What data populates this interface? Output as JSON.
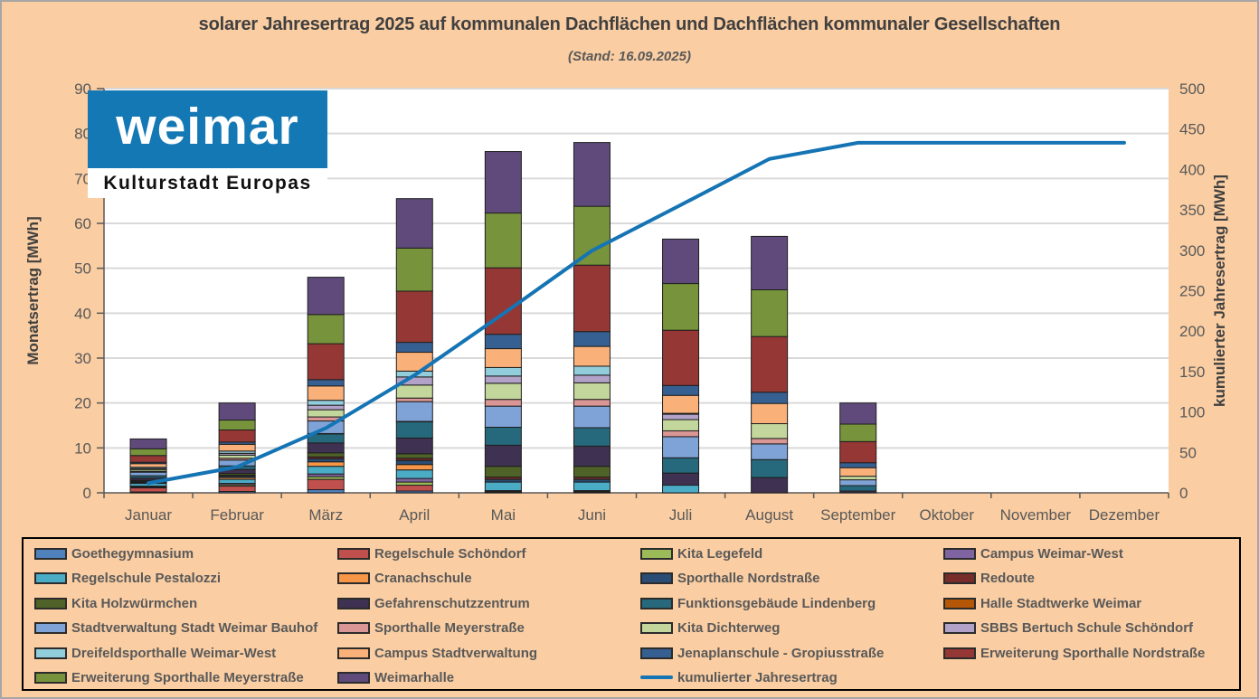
{
  "chart": {
    "title": "solarer Jahresertrag 2025  auf kommunalen Dachflächen und Dachflächen kommunaler Gesellschaften",
    "subtitle": "(Stand: 16.09.2025)"
  },
  "logo": {
    "line1": "weimar",
    "line2": "Kulturstadt Europas"
  },
  "colors": {
    "background": "#FACDA2",
    "plot_background": "#FFFFFF",
    "gridline": "#D9D9D9",
    "axis": "#595959",
    "axis_text": "#595959",
    "title_text": "#404040",
    "bar_border": "#1F1F1F",
    "line": "#1574B4",
    "logo_blue": "#1478B4",
    "legend_border": "#000000"
  },
  "chart_data": {
    "type": "bar",
    "subtype": "stacked-bars-with-cumulative-line",
    "title": "solarer Jahresertrag 2025  auf kommunalen Dachflächen und Dachflächen kommunaler Gesellschaften",
    "subtitle": "(Stand: 16.09.2025)",
    "xlabel": "",
    "ylabel_left": "Monatsertrag [MWh]",
    "ylabel_right": "kumulierter Jahresertrag [MWh]",
    "ylim_left": [
      0,
      90
    ],
    "ytick_step_left": 10,
    "ylim_right": [
      0,
      500
    ],
    "ytick_step_right": 50,
    "grid": "horizontal",
    "legend_position": "bottom-box",
    "categories": [
      "Januar",
      "Februar",
      "März",
      "April",
      "Mai",
      "Juni",
      "Juli",
      "August",
      "September",
      "Oktober",
      "November",
      "Dezember"
    ],
    "series": [
      {
        "name": "Goethegymnasium",
        "color": "#4F81BD",
        "values": [
          0.2,
          0.3,
          0.7,
          0.4,
          0.1,
          0.1,
          0,
          0,
          0,
          0,
          0,
          0
        ]
      },
      {
        "name": "Regelschule Schöndorf",
        "color": "#C0504D",
        "values": [
          0.9,
          1.2,
          2.3,
          1.3,
          0.1,
          0.1,
          0,
          0,
          0,
          0,
          0,
          0
        ]
      },
      {
        "name": "Kita Legefeld",
        "color": "#9BBB59",
        "values": [
          0.2,
          0.3,
          0.6,
          0.7,
          0.1,
          0.1,
          0,
          0,
          0,
          0,
          0,
          0
        ]
      },
      {
        "name": "Campus Weimar-West",
        "color": "#8064A2",
        "values": [
          0.2,
          0.3,
          0.6,
          0.8,
          0.2,
          0.2,
          0,
          0,
          0,
          0,
          0,
          0
        ]
      },
      {
        "name": "Regelschule Pestalozzi",
        "color": "#4BACC6",
        "values": [
          0.6,
          0.9,
          1.7,
          1.9,
          1.9,
          1.9,
          1.7,
          0,
          0,
          0,
          0,
          0
        ]
      },
      {
        "name": "Cranachschule",
        "color": "#F79646",
        "values": [
          0.2,
          0.4,
          1.0,
          1.2,
          0,
          0,
          0,
          0,
          0,
          0,
          0,
          0
        ]
      },
      {
        "name": "Sporthalle Nordstraße",
        "color": "#2A4D75",
        "values": [
          0.2,
          0.3,
          0.7,
          0.9,
          0.6,
          0.6,
          0,
          0,
          0,
          0,
          0,
          0
        ]
      },
      {
        "name": "Redoute",
        "color": "#772C2A",
        "values": [
          0.1,
          0.2,
          0.4,
          0.5,
          0.5,
          0.5,
          0,
          0,
          0,
          0,
          0,
          0
        ]
      },
      {
        "name": "Kita Holzwürmchen",
        "color": "#4F6228",
        "values": [
          0.2,
          0.4,
          0.9,
          1.0,
          2.4,
          2.4,
          0,
          0,
          0,
          0,
          0,
          0
        ]
      },
      {
        "name": "Gefahrenschutzzentrum",
        "color": "#3F3151",
        "values": [
          0.5,
          0.9,
          2.2,
          3.5,
          4.7,
          4.5,
          2.7,
          3.4,
          0.4,
          0,
          0,
          0
        ]
      },
      {
        "name": "Funktionsgebäude Lindenberg",
        "color": "#26697D",
        "values": [
          0.5,
          0.8,
          2.0,
          3.6,
          4.0,
          4.1,
          3.4,
          4.0,
          1.2,
          0,
          0,
          0
        ]
      },
      {
        "name": "Halle Stadtwerke Weimar",
        "color": "#B65708",
        "values": [
          0,
          0,
          0.1,
          0.1,
          0,
          0,
          0,
          0,
          0,
          0,
          0,
          0
        ]
      },
      {
        "name": "Stadtverwaltung Stadt Weimar Bauhof",
        "color": "#7FA3D6",
        "values": [
          0.8,
          1.3,
          2.8,
          4.4,
          4.7,
          4.8,
          4.7,
          3.5,
          1.3,
          0,
          0,
          0
        ]
      },
      {
        "name": "Sporthalle Meyerstraße",
        "color": "#D99694",
        "values": [
          0.2,
          0.4,
          0.9,
          0.8,
          1.5,
          1.5,
          1.3,
          1.2,
          0,
          0,
          0,
          0
        ]
      },
      {
        "name": "Kita Dichterweg",
        "color": "#C3D69B",
        "values": [
          0.4,
          0.7,
          1.6,
          2.9,
          3.6,
          3.7,
          2.5,
          3.3,
          0.8,
          0,
          0,
          0
        ]
      },
      {
        "name": "SBBS Bertuch Schule Schöndorf",
        "color": "#B2A2C7",
        "values": [
          0.2,
          0.4,
          1.0,
          1.8,
          1.6,
          1.7,
          1.2,
          0,
          0,
          0,
          0,
          0
        ]
      },
      {
        "name": "Dreifeldsporthalle Weimar-West",
        "color": "#92CDDC",
        "values": [
          0.3,
          0.5,
          1.1,
          1.3,
          1.9,
          2.0,
          0.2,
          0,
          0,
          0,
          0,
          0
        ]
      },
      {
        "name": "Campus Stadtverwaltung",
        "color": "#FAB179",
        "values": [
          0.8,
          1.5,
          3.2,
          4.2,
          4.2,
          4.4,
          4.0,
          4.5,
          1.9,
          0,
          0,
          0
        ]
      },
      {
        "name": "Jenaplanschule - Gropiusstraße",
        "color": "#376092",
        "values": [
          0.3,
          0.5,
          1.4,
          2.2,
          3.2,
          3.3,
          2.2,
          2.5,
          1.1,
          0,
          0,
          0
        ]
      },
      {
        "name": "Erweiterung Sporthalle Nordstraße",
        "color": "#953735",
        "values": [
          1.5,
          2.7,
          8.0,
          11.4,
          14.8,
          14.8,
          12.3,
          12.4,
          4.7,
          0,
          0,
          0
        ]
      },
      {
        "name": "Erweiterung Sporthalle Meyerstraße",
        "color": "#77933C",
        "values": [
          1.5,
          2.2,
          6.5,
          9.6,
          12.2,
          13.1,
          10.4,
          10.4,
          3.9,
          0,
          0,
          0
        ]
      },
      {
        "name": "Weimarhalle",
        "color": "#604A7B",
        "values": [
          2.2,
          3.8,
          8.3,
          11.0,
          13.7,
          14.2,
          9.9,
          11.9,
          4.7,
          0,
          0,
          0
        ]
      }
    ],
    "line_series": {
      "name": "kumulierter Jahresertrag",
      "color": "#1574B4",
      "axis": "right",
      "values": [
        12,
        32,
        80,
        145.5,
        221.5,
        299.5,
        356,
        413,
        433,
        433,
        433,
        433
      ]
    },
    "monthly_totals": [
      12,
      20,
      48,
      65.5,
      76,
      78,
      56.5,
      57,
      20,
      0,
      0,
      0
    ]
  }
}
